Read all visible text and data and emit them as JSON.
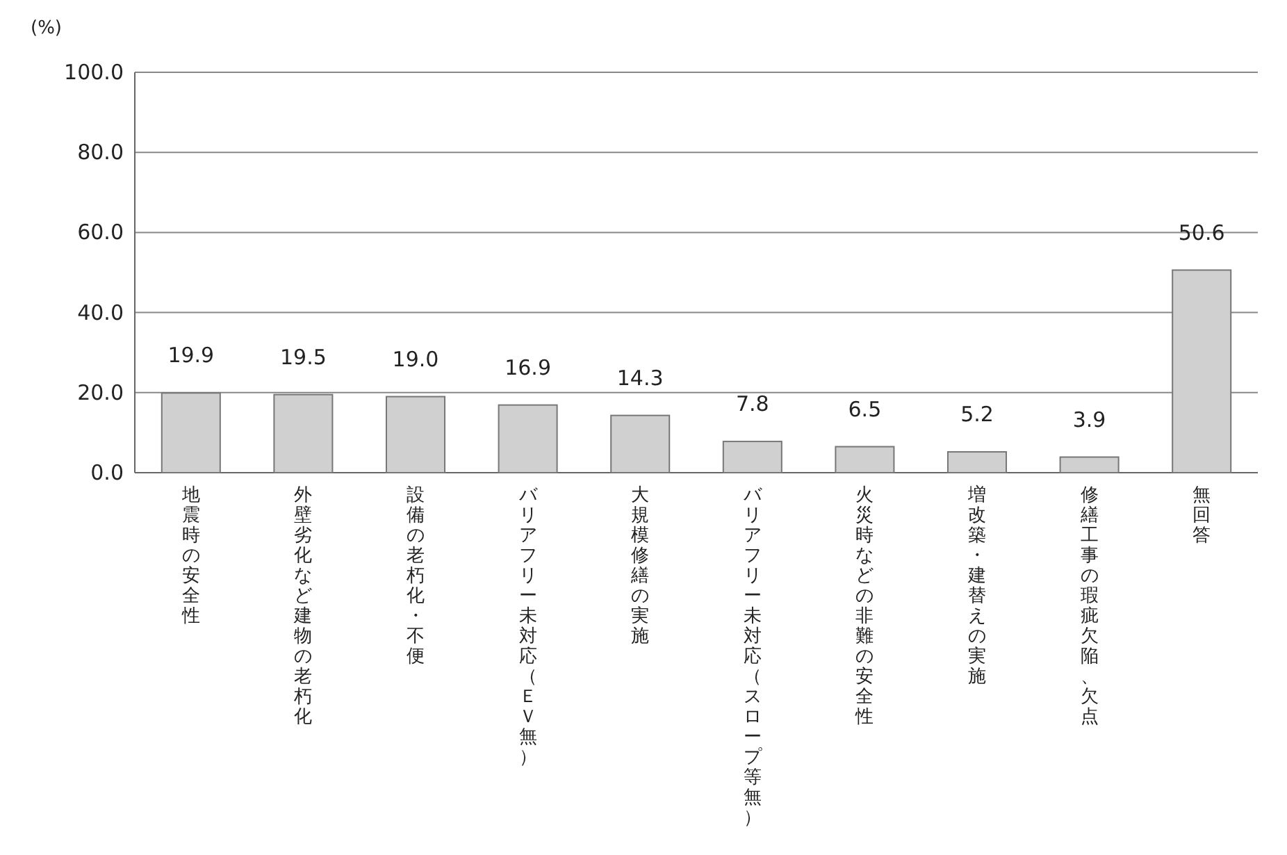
{
  "chart_data": {
    "type": "bar",
    "ylabel": "(%)",
    "categories": [
      "地震時の安全性",
      "外壁劣化など建物の老朽化",
      "設備の老朽化・不便",
      "バリアフリー未対応（ＥＶ無）",
      "大規模修繕の実施",
      "バリアフリー未対応（スロープ等無）",
      "火災時などの非難の安全性",
      "増改築・建替えの実施",
      "修繕工事の瑕疵欠陥、欠点",
      "無回答"
    ],
    "values": [
      19.9,
      19.5,
      19.0,
      16.9,
      14.3,
      7.8,
      6.5,
      5.2,
      3.9,
      50.6
    ],
    "value_labels": [
      "19.9",
      "19.5",
      "19.0",
      "16.9",
      "14.3",
      "7.8",
      "6.5",
      "5.2",
      "3.9",
      "50.6"
    ],
    "color": "#d0d0d0",
    "ylim": [
      0,
      100
    ],
    "yticks": [
      {
        "value": 0,
        "label": "0.0"
      },
      {
        "value": 20,
        "label": "20.0"
      },
      {
        "value": 40,
        "label": "40.0"
      },
      {
        "value": 60,
        "label": "60.0"
      },
      {
        "value": 80,
        "label": "80.0"
      },
      {
        "value": 100,
        "label": "100.0"
      }
    ],
    "grid": "y"
  }
}
